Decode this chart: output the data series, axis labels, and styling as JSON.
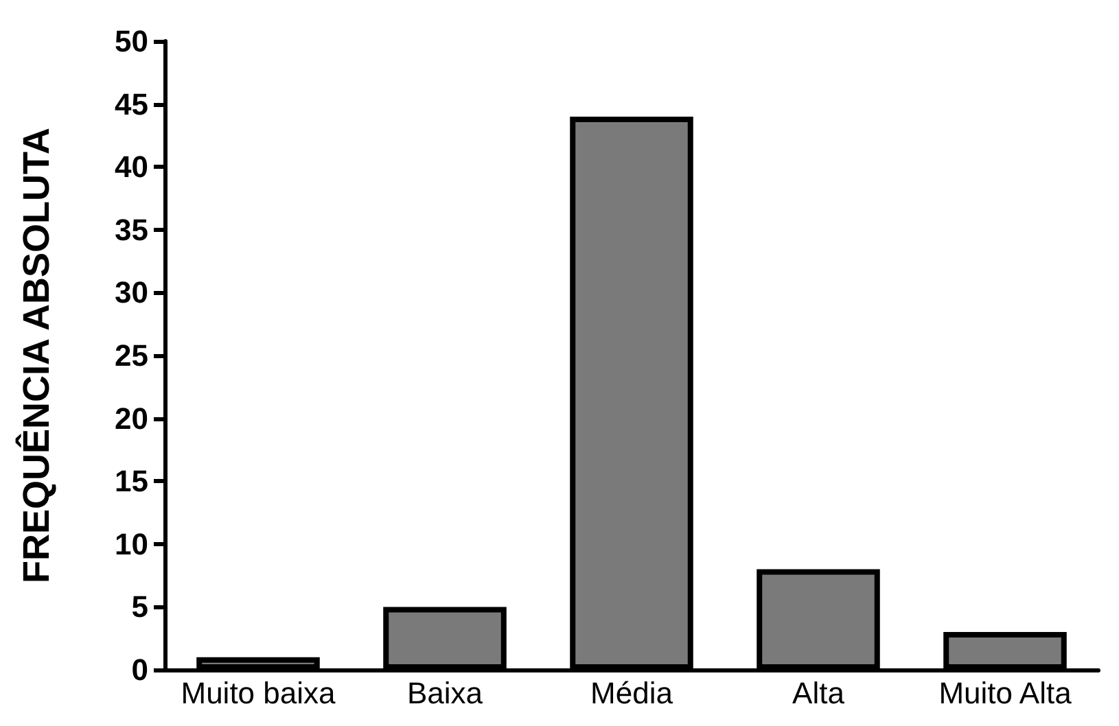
{
  "chart_data": {
    "type": "bar",
    "ylabel": "FREQUÊNCIA ABSOLUTA",
    "categories": [
      "Muito baixa",
      "Baixa",
      "Média",
      "Alta",
      "Muito Alta"
    ],
    "values": [
      1,
      5,
      44,
      8,
      3
    ],
    "color": "#7a7a7a",
    "ylim": [
      0,
      50
    ],
    "yticks": [
      0,
      5,
      10,
      15,
      20,
      25,
      30,
      35,
      40,
      45,
      50
    ],
    "grid": false
  }
}
